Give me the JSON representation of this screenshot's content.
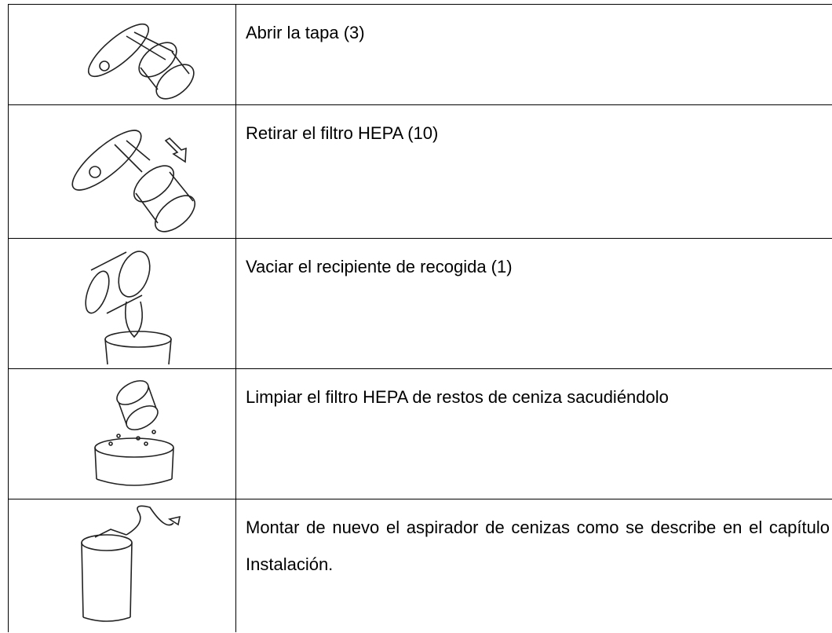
{
  "table": {
    "rows": [
      {
        "text": "Abrir la tapa (3)"
      },
      {
        "text": "Retirar el filtro HEPA (10)"
      },
      {
        "text": "Vaciar el recipiente de recogida (1)"
      },
      {
        "text": "Limpiar el filtro HEPA de restos de ceniza sacudiéndolo"
      },
      {
        "text": "Montar de nuevo el aspirador de cenizas como se describe en el capítulo Instalación."
      }
    ]
  }
}
